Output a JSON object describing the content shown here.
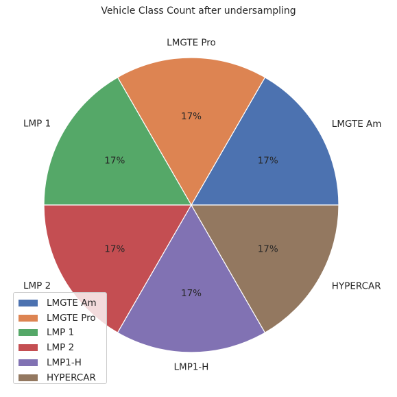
{
  "chart_data": {
    "type": "pie",
    "title": "Vehicle Class Count after undersampling",
    "categories": [
      "LMGTE Am",
      "LMGTE Pro",
      "LMP 1",
      "LMP 2",
      "LMP1-H",
      "HYPERCAR"
    ],
    "values": [
      1,
      1,
      1,
      1,
      1,
      1
    ],
    "percent_labels": [
      "17%",
      "17%",
      "17%",
      "17%",
      "17%",
      "17%"
    ],
    "colors": [
      "#4c72b0",
      "#dd8452",
      "#55a868",
      "#c44e52",
      "#8172b3",
      "#937860"
    ],
    "start_angle_deg": 0,
    "direction": "counterclockwise",
    "legend": {
      "position": "lower-left",
      "entries": [
        "LMGTE Am",
        "LMGTE Pro",
        "LMP 1",
        "LMP 2",
        "LMP1-H",
        "HYPERCAR"
      ]
    }
  }
}
